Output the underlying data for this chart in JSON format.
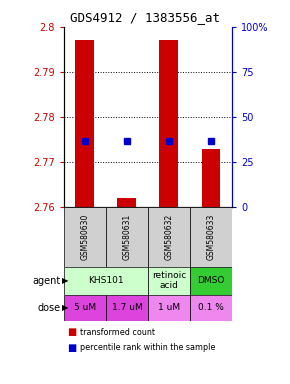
{
  "title": "GDS4912 / 1383556_at",
  "samples": [
    "GSM580630",
    "GSM580631",
    "GSM580632",
    "GSM580633"
  ],
  "red_bar_tops": [
    2.797,
    2.762,
    2.797,
    2.773
  ],
  "red_bar_bottom": 2.76,
  "blue_pcts": [
    37,
    37,
    37,
    37
  ],
  "ylim_left": [
    2.76,
    2.8
  ],
  "ylim_right": [
    0,
    100
  ],
  "yticks_left": [
    2.76,
    2.77,
    2.78,
    2.79,
    2.8
  ],
  "yticks_right": [
    0,
    25,
    50,
    75,
    100
  ],
  "ytick_labels_right": [
    "0",
    "25",
    "50",
    "75",
    "100%"
  ],
  "agent_spans": [
    [
      0,
      2,
      "KHS101",
      "#ccffcc"
    ],
    [
      2,
      3,
      "retinoic\nacid",
      "#ccffcc"
    ],
    [
      3,
      4,
      "DMSO",
      "#33cc33"
    ]
  ],
  "doses": [
    "5 uM",
    "1.7 uM",
    "1 uM",
    "0.1 %"
  ],
  "dose_colors": [
    "#dd44dd",
    "#dd44dd",
    "#ee88ee",
    "#ee88ee"
  ],
  "bar_color": "#cc0000",
  "dot_color": "#0000cc",
  "left_axis_color": "#cc0000",
  "right_axis_color": "#0000cc",
  "sample_bg": "#d0d0d0",
  "legend_items": [
    {
      "color": "#cc0000",
      "label": "transformed count"
    },
    {
      "color": "#0000cc",
      "label": "percentile rank within the sample"
    }
  ]
}
